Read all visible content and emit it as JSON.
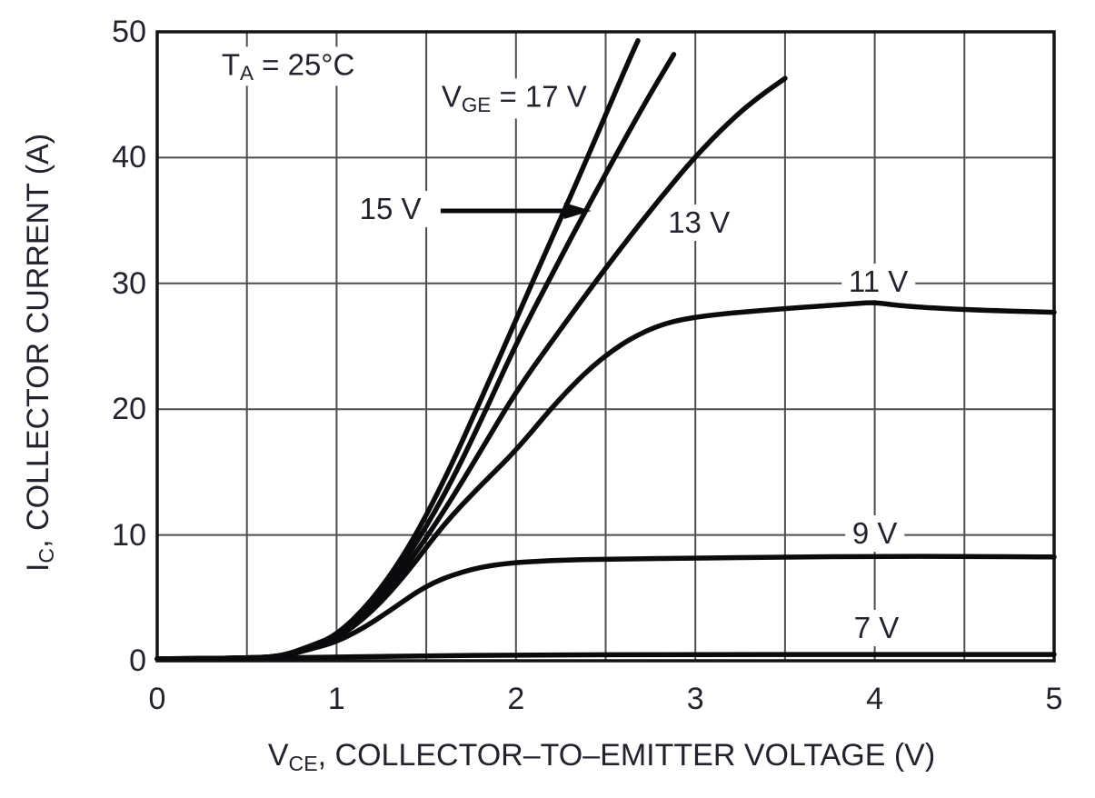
{
  "chart_data": {
    "type": "line",
    "title": "",
    "condition_label": {
      "text": "TA = 25°C",
      "parts": [
        {
          "t": "T"
        },
        {
          "t": "A",
          "sub": true
        },
        {
          "t": " = 25°C"
        }
      ],
      "x": 0.73,
      "y": 47.25,
      "white_bg": true
    },
    "xlabel": {
      "text": "VCE, COLLECTOR–TO–EMITTER VOLTAGE (V)",
      "parts": [
        {
          "t": "V"
        },
        {
          "t": "CE",
          "sub": true
        },
        {
          "t": ", COLLECTOR–TO–EMITTER VOLTAGE (V)"
        }
      ]
    },
    "ylabel": {
      "text": "IC, COLLECTOR CURRENT (A)",
      "parts": [
        {
          "t": "I"
        },
        {
          "t": "C",
          "sub": true
        },
        {
          "t": ", COLLECTOR CURRENT (A)"
        }
      ]
    },
    "xlim": [
      0,
      5
    ],
    "ylim": [
      0,
      50
    ],
    "x_ticks": [
      0,
      1,
      2,
      3,
      4,
      5
    ],
    "y_ticks": [
      0,
      10,
      20,
      30,
      40,
      50
    ],
    "x_grid_step": 0.5,
    "y_grid_step": 10,
    "grid": true,
    "legend_position": "inline-curve-labels",
    "series": [
      {
        "name": "VGE = 7 V",
        "vge": 7,
        "points": [
          [
            0,
            0.15
          ],
          [
            0.6,
            0.2
          ],
          [
            1,
            0.3
          ],
          [
            1.5,
            0.4
          ],
          [
            2,
            0.45
          ],
          [
            3,
            0.5
          ],
          [
            4,
            0.5
          ],
          [
            5,
            0.5
          ]
        ]
      },
      {
        "name": "VGE = 9 V",
        "vge": 9,
        "points": [
          [
            0,
            0.15
          ],
          [
            0.55,
            0.2
          ],
          [
            0.7,
            0.35
          ],
          [
            0.85,
            0.9
          ],
          [
            1,
            1.5
          ],
          [
            1.15,
            2.6
          ],
          [
            1.3,
            4.0
          ],
          [
            1.5,
            6.0
          ],
          [
            1.7,
            7.1
          ],
          [
            1.9,
            7.7
          ],
          [
            2.2,
            8.0
          ],
          [
            2.6,
            8.1
          ],
          [
            3,
            8.15
          ],
          [
            3.5,
            8.25
          ],
          [
            4,
            8.3
          ],
          [
            4.5,
            8.3
          ],
          [
            5,
            8.25
          ]
        ]
      },
      {
        "name": "VGE = 11 V",
        "vge": 11,
        "points": [
          [
            0,
            0.15
          ],
          [
            0.55,
            0.2
          ],
          [
            0.7,
            0.4
          ],
          [
            0.85,
            1.0
          ],
          [
            1,
            1.7
          ],
          [
            1.2,
            3.9
          ],
          [
            1.4,
            7.1
          ],
          [
            1.6,
            10.9
          ],
          [
            1.8,
            13.9
          ],
          [
            2,
            16.7
          ],
          [
            2.25,
            21.0
          ],
          [
            2.5,
            24.4
          ],
          [
            2.75,
            26.5
          ],
          [
            3,
            27.4
          ],
          [
            3.5,
            28.0
          ],
          [
            3.9,
            28.4
          ],
          [
            4,
            28.5
          ],
          [
            4.15,
            28.2
          ],
          [
            4.5,
            27.9
          ],
          [
            5,
            27.7
          ]
        ]
      },
      {
        "name": "VGE = 13 V",
        "vge": 13,
        "points": [
          [
            0,
            0.15
          ],
          [
            0.55,
            0.2
          ],
          [
            0.7,
            0.4
          ],
          [
            0.85,
            1.05
          ],
          [
            1,
            1.8
          ],
          [
            1.2,
            4.2
          ],
          [
            1.4,
            7.7
          ],
          [
            1.6,
            11.9
          ],
          [
            1.8,
            16.6
          ],
          [
            2,
            21.4
          ],
          [
            2.2,
            25.4
          ],
          [
            2.4,
            29.3
          ],
          [
            2.6,
            33.1
          ],
          [
            2.8,
            36.7
          ],
          [
            3,
            40.1
          ],
          [
            3.2,
            43.0
          ],
          [
            3.35,
            44.8
          ],
          [
            3.5,
            46.3
          ]
        ]
      },
      {
        "name": "VGE = 15 V",
        "vge": 15,
        "points": [
          [
            0,
            0.15
          ],
          [
            0.55,
            0.2
          ],
          [
            0.7,
            0.4
          ],
          [
            0.85,
            1.1
          ],
          [
            1,
            1.9
          ],
          [
            1.2,
            4.5
          ],
          [
            1.4,
            8.3
          ],
          [
            1.6,
            13.1
          ],
          [
            1.8,
            18.9
          ],
          [
            2,
            25.2
          ],
          [
            2.2,
            30.7
          ],
          [
            2.4,
            36.1
          ],
          [
            2.6,
            41.3
          ],
          [
            2.75,
            45.1
          ],
          [
            2.88,
            48.2
          ]
        ]
      },
      {
        "name": "VGE = 17 V",
        "vge": 17,
        "points": [
          [
            0,
            0.15
          ],
          [
            0.55,
            0.2
          ],
          [
            0.7,
            0.4
          ],
          [
            0.85,
            1.15
          ],
          [
            1,
            2.0
          ],
          [
            1.2,
            4.8
          ],
          [
            1.4,
            8.9
          ],
          [
            1.6,
            14.3
          ],
          [
            1.8,
            20.6
          ],
          [
            2,
            27.1
          ],
          [
            2.2,
            33.6
          ],
          [
            2.35,
            38.4
          ],
          [
            2.5,
            43.4
          ],
          [
            2.62,
            47.4
          ],
          [
            2.68,
            49.3
          ]
        ]
      }
    ],
    "series_labels": [
      {
        "for_vge": 17,
        "text": "VGE = 17 V",
        "parts": [
          {
            "t": "V"
          },
          {
            "t": "GE",
            "sub": true
          },
          {
            "t": " = 17 V"
          }
        ],
        "x": 1.99,
        "y": 44.7,
        "white_bg": true
      },
      {
        "for_vge": 15,
        "text": "15 V",
        "parts": [
          {
            "t": "15 V"
          }
        ],
        "x": 1.3,
        "y": 35.9,
        "white_bg": true,
        "arrow": {
          "x1": 1.58,
          "x2": 2.42,
          "y": 35.77
        }
      },
      {
        "for_vge": 13,
        "text": "13 V",
        "parts": [
          {
            "t": "13 V"
          }
        ],
        "x": 3.02,
        "y": 34.8,
        "white_bg": true
      },
      {
        "for_vge": 11,
        "text": "11 V",
        "parts": [
          {
            "t": "11 V"
          }
        ],
        "x": 4.02,
        "y": 30.1,
        "white_bg": true
      },
      {
        "for_vge": 9,
        "text": "9 V",
        "parts": [
          {
            "t": "9 V"
          }
        ],
        "x": 4.0,
        "y": 10.1,
        "white_bg": true
      },
      {
        "for_vge": 7,
        "text": "7 V",
        "parts": [
          {
            "t": "7 V"
          }
        ],
        "x": 4.01,
        "y": 2.6,
        "white_bg": true
      }
    ],
    "colors": {
      "curve": "#0b0b0e",
      "grid": "#4d4d52",
      "frame": "#131316",
      "text": "#23232e",
      "background": "#ffffff"
    }
  }
}
